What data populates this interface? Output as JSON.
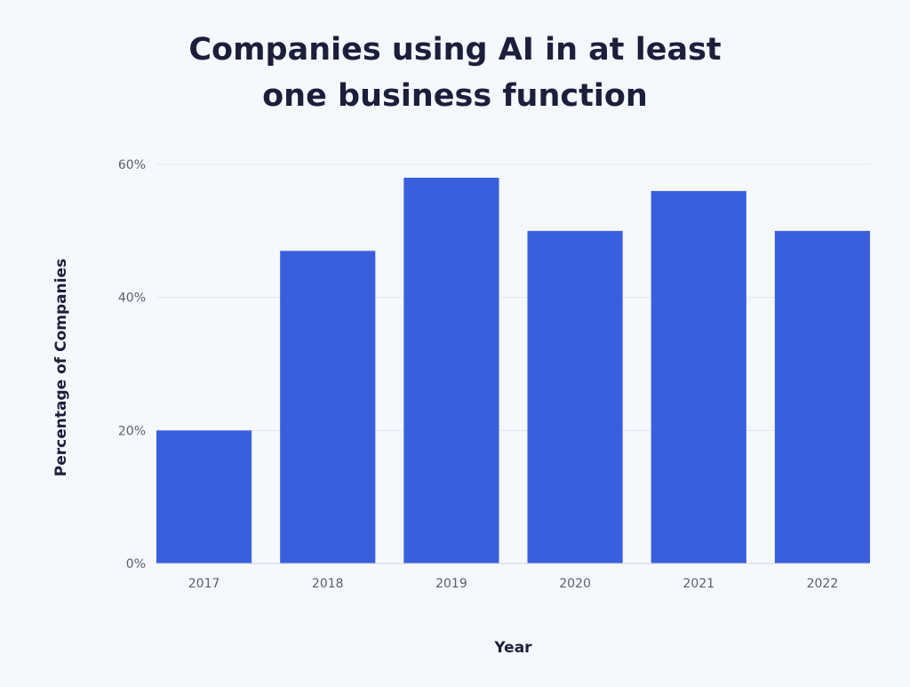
{
  "chart_data": {
    "type": "bar",
    "title_lines": [
      "Companies using AI in at least",
      "one business function"
    ],
    "xlabel": "Year",
    "ylabel": "Percentage of Companies",
    "categories": [
      "2017",
      "2018",
      "2019",
      "2020",
      "2021",
      "2022"
    ],
    "values": [
      20,
      47,
      58,
      50,
      56,
      50
    ],
    "ylim": [
      0,
      60
    ],
    "yticks": [
      0,
      20,
      40,
      60
    ],
    "ytick_labels": [
      "0%",
      "20%",
      "40%",
      "60%"
    ],
    "grid": true,
    "bar_color": "#3a5fde"
  }
}
